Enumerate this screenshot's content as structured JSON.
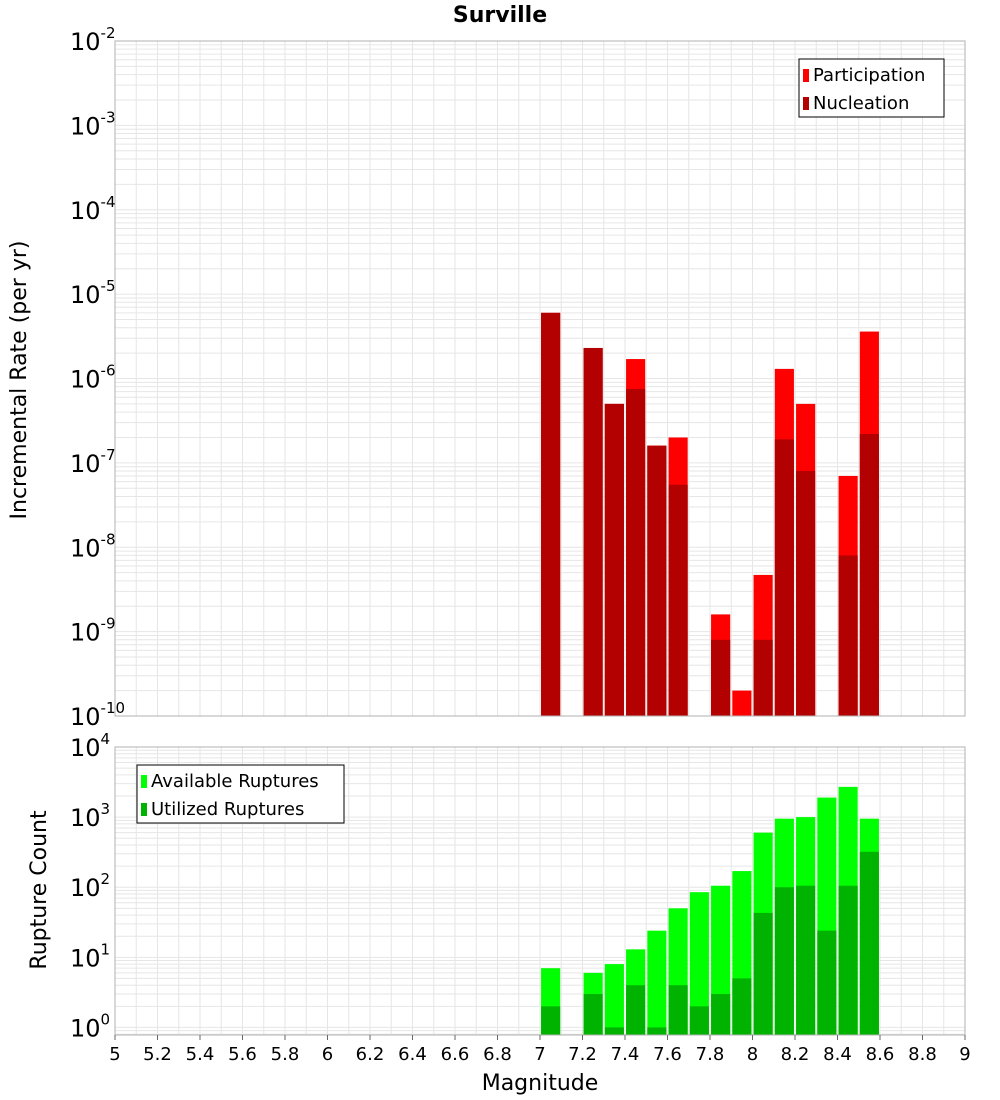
{
  "title": "Surville",
  "colors": {
    "participation": "#ff0000",
    "nucleation": "#b30000",
    "available": "#00ff00",
    "utilized": "#00b300",
    "grid": "#e6e6e6",
    "frame": "#b0b0b0"
  },
  "chart_data": [
    {
      "type": "bar",
      "title": "Surville",
      "xlabel": "Magnitude",
      "ylabel": "Incremental Rate (per yr)",
      "ylog": true,
      "xlim": [
        5,
        9
      ],
      "ylim": [
        1e-10,
        0.01
      ],
      "grid": true,
      "legend": "top-right",
      "x": [
        7.05,
        7.25,
        7.35,
        7.45,
        7.55,
        7.65,
        7.85,
        7.95,
        8.05,
        8.15,
        8.25,
        8.45,
        8.55
      ],
      "series": [
        {
          "name": "Participation",
          "values": [
            6e-06,
            2.3e-06,
            5e-07,
            1.7e-06,
            1.6e-07,
            2e-07,
            1.6e-09,
            2e-10,
            4.7e-09,
            1.3e-06,
            5e-07,
            7e-08,
            3.6e-06
          ]
        },
        {
          "name": "Nucleation",
          "values": [
            6e-06,
            2.3e-06,
            5e-07,
            7.5e-07,
            1.6e-07,
            5.5e-08,
            8e-10,
            null,
            8e-10,
            1.9e-07,
            8e-08,
            8e-09,
            2.2e-07
          ]
        }
      ]
    },
    {
      "type": "bar",
      "title": "",
      "xlabel": "Magnitude",
      "ylabel": "Rupture Count",
      "ylog": true,
      "xlim": [
        5,
        9
      ],
      "ylim": [
        0.78,
        10000
      ],
      "grid": true,
      "legend": "top-left",
      "x": [
        7.05,
        7.25,
        7.35,
        7.45,
        7.55,
        7.65,
        7.75,
        7.85,
        7.95,
        8.05,
        8.15,
        8.25,
        8.35,
        8.45,
        8.55
      ],
      "series": [
        {
          "name": "Available Ruptures",
          "values": [
            7,
            6,
            8,
            13,
            24,
            50,
            85,
            105,
            170,
            600,
            950,
            1000,
            1900,
            2700,
            950
          ]
        },
        {
          "name": "Utilized Ruptures",
          "values": [
            2,
            3,
            1,
            4,
            1,
            4,
            2,
            3,
            5,
            43,
            100,
            105,
            24,
            105,
            320
          ]
        }
      ]
    }
  ],
  "x_ticks": [
    "5",
    "5.2",
    "5.4",
    "5.6",
    "5.8",
    "6",
    "6.2",
    "6.4",
    "6.6",
    "6.8",
    "7",
    "7.2",
    "7.4",
    "7.6",
    "7.8",
    "8",
    "8.2",
    "8.4",
    "8.6",
    "8.8",
    "9"
  ],
  "y1_ticks": [
    {
      "base": "10",
      "exp": "-2"
    },
    {
      "base": "10",
      "exp": "-3"
    },
    {
      "base": "10",
      "exp": "-4"
    },
    {
      "base": "10",
      "exp": "-5"
    },
    {
      "base": "10",
      "exp": "-6"
    },
    {
      "base": "10",
      "exp": "-7"
    },
    {
      "base": "10",
      "exp": "-8"
    },
    {
      "base": "10",
      "exp": "-9"
    },
    {
      "base": "10",
      "exp": "-10"
    }
  ],
  "y2_ticks": [
    {
      "base": "10",
      "exp": "4"
    },
    {
      "base": "10",
      "exp": "3"
    },
    {
      "base": "10",
      "exp": "2"
    },
    {
      "base": "10",
      "exp": "1"
    },
    {
      "base": "10",
      "exp": "0"
    }
  ]
}
